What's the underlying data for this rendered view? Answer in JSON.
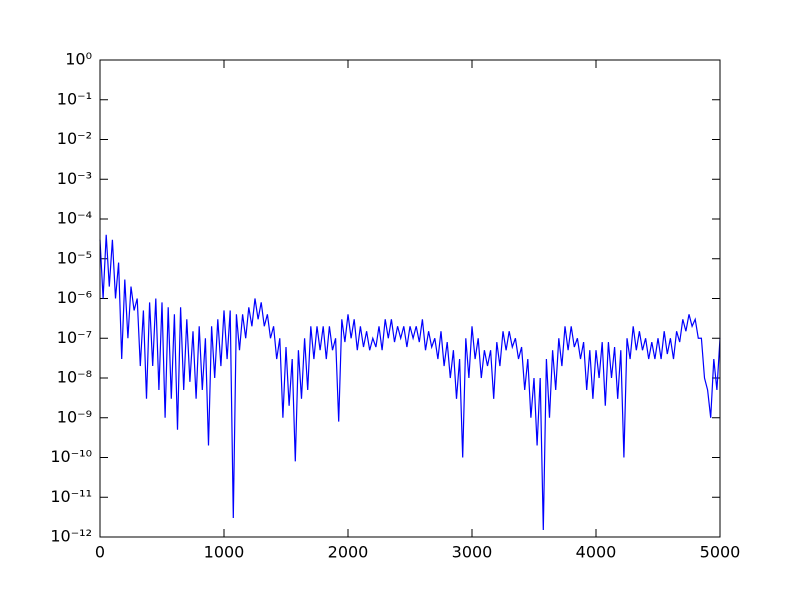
{
  "chart_data": {
    "type": "line",
    "log_y": true,
    "grid": false,
    "xlim": [
      0,
      5000
    ],
    "xticks": [
      0,
      1000,
      2000,
      3000,
      4000,
      5000
    ],
    "ylim": [
      1e-12,
      1
    ],
    "yticks": [
      {
        "value": 1e-12,
        "label": "10⁻¹²"
      },
      {
        "value": 1e-11,
        "label": "10⁻¹¹"
      },
      {
        "value": 1e-10,
        "label": "10⁻¹⁰"
      },
      {
        "value": 1e-09,
        "label": "10⁻⁹"
      },
      {
        "value": 1e-08,
        "label": "10⁻⁸"
      },
      {
        "value": 1e-07,
        "label": "10⁻⁷"
      },
      {
        "value": 1e-06,
        "label": "10⁻⁶"
      },
      {
        "value": 1e-05,
        "label": "10⁻⁵"
      },
      {
        "value": 0.0001,
        "label": "10⁻⁴"
      },
      {
        "value": 0.001,
        "label": "10⁻³"
      },
      {
        "value": 0.01,
        "label": "10⁻²"
      },
      {
        "value": 0.1,
        "label": "10⁻¹"
      },
      {
        "value": 1,
        "label": "10⁰"
      }
    ],
    "series": [
      {
        "color": "#0000ff",
        "x": [
          0,
          25,
          50,
          75,
          100,
          125,
          150,
          175,
          200,
          225,
          250,
          275,
          300,
          325,
          350,
          375,
          400,
          425,
          450,
          475,
          500,
          525,
          550,
          575,
          600,
          625,
          650,
          675,
          700,
          725,
          750,
          775,
          800,
          825,
          850,
          875,
          900,
          925,
          950,
          975,
          1000,
          1025,
          1050,
          1075,
          1100,
          1125,
          1150,
          1175,
          1200,
          1225,
          1250,
          1275,
          1300,
          1325,
          1350,
          1375,
          1400,
          1425,
          1450,
          1475,
          1500,
          1525,
          1550,
          1575,
          1600,
          1625,
          1650,
          1675,
          1700,
          1725,
          1750,
          1775,
          1800,
          1825,
          1850,
          1875,
          1900,
          1925,
          1950,
          1975,
          2000,
          2025,
          2050,
          2075,
          2100,
          2125,
          2150,
          2175,
          2200,
          2225,
          2250,
          2275,
          2300,
          2325,
          2350,
          2375,
          2400,
          2425,
          2450,
          2475,
          2500,
          2525,
          2550,
          2575,
          2600,
          2625,
          2650,
          2675,
          2700,
          2725,
          2750,
          2775,
          2800,
          2825,
          2850,
          2875,
          2900,
          2925,
          2950,
          2975,
          3000,
          3025,
          3050,
          3075,
          3100,
          3125,
          3150,
          3175,
          3200,
          3225,
          3250,
          3275,
          3300,
          3325,
          3350,
          3375,
          3400,
          3425,
          3450,
          3475,
          3500,
          3525,
          3550,
          3575,
          3600,
          3625,
          3650,
          3675,
          3700,
          3725,
          3750,
          3775,
          3800,
          3825,
          3850,
          3875,
          3900,
          3925,
          3950,
          3975,
          4000,
          4025,
          4050,
          4075,
          4100,
          4125,
          4150,
          4175,
          4200,
          4225,
          4250,
          4275,
          4300,
          4325,
          4350,
          4375,
          4400,
          4425,
          4450,
          4475,
          4500,
          4525,
          4550,
          4575,
          4600,
          4625,
          4650,
          4675,
          4700,
          4725,
          4750,
          4775,
          4800,
          4825,
          4850,
          4875,
          4900,
          4925,
          4950,
          4975,
          5000
        ],
        "values": [
          3e-05,
          1e-06,
          4e-05,
          2e-06,
          3e-05,
          1e-06,
          8e-06,
          3e-08,
          3e-06,
          1e-07,
          2e-06,
          5e-07,
          1e-06,
          2e-08,
          5e-07,
          3e-09,
          8e-07,
          2e-08,
          1e-06,
          5e-09,
          8e-07,
          1e-09,
          6e-07,
          3e-09,
          4e-07,
          5e-10,
          6e-07,
          5e-09,
          3e-07,
          8e-09,
          1.5e-07,
          3e-09,
          2e-07,
          5e-09,
          1e-07,
          2e-10,
          2e-07,
          1e-08,
          3e-07,
          2e-08,
          5e-07,
          3e-08,
          5e-07,
          3e-12,
          4e-07,
          5e-08,
          4e-07,
          1e-07,
          6e-07,
          2e-07,
          1e-06,
          3e-07,
          8e-07,
          2e-07,
          4e-07,
          1e-07,
          2e-07,
          3e-08,
          1e-07,
          1e-09,
          6e-08,
          2e-09,
          3e-08,
          8e-11,
          5e-08,
          3e-09,
          1e-07,
          5e-09,
          2e-07,
          3e-08,
          2e-07,
          5e-08,
          2e-07,
          3e-08,
          2e-07,
          5e-08,
          1e-07,
          8e-10,
          3e-07,
          8e-08,
          4e-07,
          1e-07,
          3e-07,
          5e-08,
          2e-07,
          6e-08,
          1.5e-07,
          5e-08,
          1e-07,
          6e-08,
          2e-07,
          5e-08,
          3e-07,
          1e-07,
          3e-07,
          8e-08,
          2e-07,
          1e-07,
          2e-07,
          6e-08,
          2e-07,
          1e-07,
          2e-07,
          8e-08,
          3e-07,
          5e-08,
          1.5e-07,
          6e-08,
          1e-07,
          3e-08,
          1.5e-07,
          2e-08,
          8e-08,
          1e-08,
          5e-08,
          3e-09,
          3e-08,
          1e-10,
          1e-07,
          1e-08,
          2e-07,
          3e-08,
          1e-07,
          1e-08,
          5e-08,
          2e-08,
          5e-08,
          3e-09,
          8e-08,
          2e-08,
          1.5e-07,
          5e-08,
          1.5e-07,
          6e-08,
          1e-07,
          3e-08,
          6e-08,
          5e-09,
          3e-08,
          1e-09,
          1e-08,
          2e-10,
          1e-08,
          1.5e-12,
          3e-08,
          1e-09,
          5e-08,
          5e-09,
          1e-07,
          2e-08,
          2e-07,
          5e-08,
          2e-07,
          6e-08,
          1e-07,
          3e-08,
          8e-08,
          5e-09,
          5e-08,
          3e-09,
          5e-08,
          1e-08,
          8e-08,
          2e-09,
          8e-08,
          1e-08,
          6e-08,
          3e-09,
          5e-08,
          1e-10,
          1e-07,
          3e-08,
          2e-07,
          5e-08,
          1.5e-07,
          5e-08,
          1e-07,
          3e-08,
          8e-08,
          3e-08,
          1e-07,
          3e-08,
          1.5e-07,
          4e-08,
          1e-07,
          3e-08,
          1.5e-07,
          8e-08,
          3e-07,
          1.5e-07,
          4e-07,
          2e-07,
          3e-07,
          1e-07,
          1e-07,
          1e-08,
          5e-09,
          1e-09,
          3e-08,
          5e-09,
          1e-07
        ]
      }
    ]
  }
}
